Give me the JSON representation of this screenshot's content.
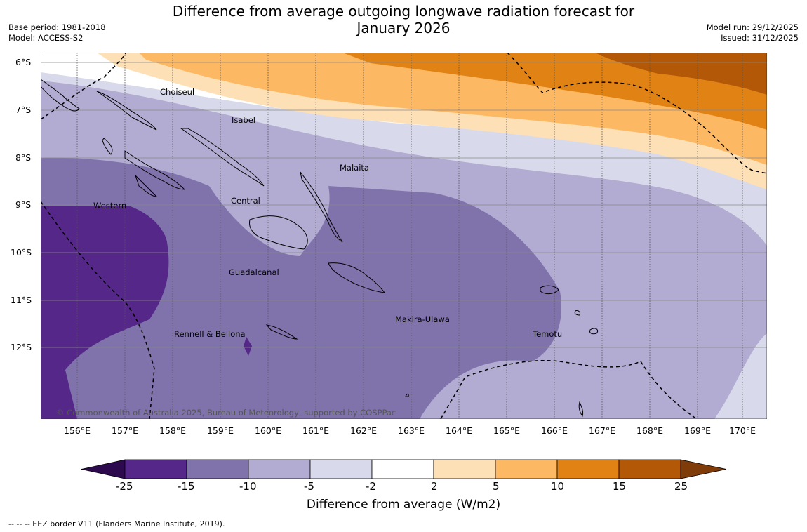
{
  "header": {
    "title_line1": "Difference from average outgoing longwave radiation forecast for",
    "title_line2": "January 2026",
    "base_period": "Base period: 1981-2018",
    "model": "Model: ACCESS-S2",
    "model_run": "Model run: 29/12/2025",
    "issued": "Issued: 31/12/2025"
  },
  "map": {
    "lat_labels": [
      "6°S",
      "7°S",
      "8°S",
      "9°S",
      "10°S",
      "11°S",
      "12°S"
    ],
    "lon_labels": [
      "156°E",
      "157°E",
      "158°E",
      "159°E",
      "160°E",
      "161°E",
      "162°E",
      "163°E",
      "164°E",
      "165°E",
      "166°E",
      "167°E",
      "168°E",
      "169°E",
      "170°E"
    ],
    "regions": [
      {
        "name": "Choiseul"
      },
      {
        "name": "Isabel"
      },
      {
        "name": "Malaita"
      },
      {
        "name": "Western"
      },
      {
        "name": "Central"
      },
      {
        "name": "Guadalcanal"
      },
      {
        "name": "Makira-Ulawa"
      },
      {
        "name": "Rennell & Bellona"
      },
      {
        "name": "Temotu"
      }
    ],
    "copyright": "© Commonwealth of Australia 2025, Bureau of Meteorology, supported by COSPPac"
  },
  "colorbar": {
    "ticks": [
      "-25",
      "-15",
      "-10",
      "-5",
      "-2",
      "2",
      "5",
      "10",
      "15",
      "25"
    ],
    "colors": [
      "#2d0a4e",
      "#542788",
      "#8073ac",
      "#b2abd2",
      "#d8daeb",
      "#ffffff",
      "#fee0b6",
      "#fdb863",
      "#e08214",
      "#b35806",
      "#7f3b08"
    ],
    "title": "Difference from average (W/m2)"
  },
  "footer": {
    "eez": "--  --  -- EEZ border V11 (Flanders Marine Institute, 2019)."
  }
}
